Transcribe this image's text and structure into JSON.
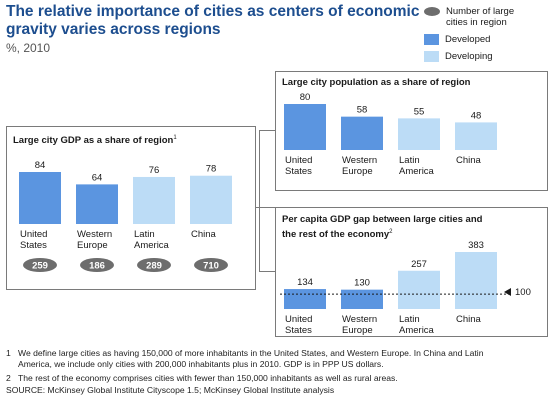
{
  "title": "The relative importance of cities as centers of economic gravity varies across regions",
  "subtitle": "%, 2010",
  "legend": {
    "count_label": "Number of large cities in region",
    "developed_label": "Developed",
    "developing_label": "Developing",
    "colors": {
      "developed": "#5b95e0",
      "developing": "#bcdcf6",
      "count_oval": "#6d6d6d"
    }
  },
  "chart_data": [
    {
      "type": "bar",
      "title": "Large city GDP as a share of region",
      "title_footnote": "1",
      "categories": [
        "United States",
        "Western Europe",
        "Latin America",
        "China"
      ],
      "category_lines": [
        [
          "United",
          "States"
        ],
        [
          "Western",
          "Europe"
        ],
        [
          "Latin",
          "America"
        ],
        [
          "China"
        ]
      ],
      "values": [
        84,
        64,
        76,
        78
      ],
      "development": [
        "Developed",
        "Developed",
        "Developing",
        "Developing"
      ],
      "large_city_counts": [
        259,
        186,
        289,
        710
      ]
    },
    {
      "type": "bar",
      "title": "Large city population as a share of region",
      "categories": [
        "United States",
        "Western Europe",
        "Latin America",
        "China"
      ],
      "category_lines": [
        [
          "United",
          "States"
        ],
        [
          "Western",
          "Europe"
        ],
        [
          "Latin",
          "America"
        ],
        [
          "China"
        ]
      ],
      "values": [
        80,
        58,
        55,
        48
      ],
      "development": [
        "Developed",
        "Developed",
        "Developing",
        "Developing"
      ]
    },
    {
      "type": "bar",
      "title": "Per capita GDP gap between large cities and the rest of the economy",
      "title_lines": [
        "Per capita GDP gap between large cities and",
        "the rest of the economy"
      ],
      "title_footnote": "2",
      "categories": [
        "United States",
        "Western Europe",
        "Latin America",
        "China"
      ],
      "category_lines": [
        [
          "United",
          "States"
        ],
        [
          "Western",
          "Europe"
        ],
        [
          "Latin",
          "America"
        ],
        [
          "China"
        ]
      ],
      "values": [
        134,
        130,
        257,
        383
      ],
      "development": [
        "Developed",
        "Developed",
        "Developing",
        "Developing"
      ],
      "reference_line": {
        "value": 100,
        "label": "100"
      }
    }
  ],
  "footnotes": {
    "note1_num": "1",
    "note1_line1": "We define large cities as having 150,000 of more inhabitants in the United States, and Western Europe. In China and Latin",
    "note1_line2": "America, we include only cities with 200,000 inhabitants plus in 2010. GDP is in PPP US dollars.",
    "note2_num": "2",
    "note2": "The rest of the economy comprises cities with fewer than 150,000 inhabitants as well as rural areas.",
    "source": "SOURCE: McKinsey Global Institute Cityscope 1.5; McKinsey Global Institute analysis"
  }
}
